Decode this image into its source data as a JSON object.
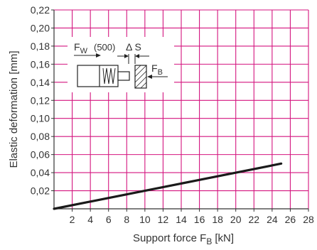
{
  "chart_data": {
    "type": "line",
    "xlabel": {
      "main": "Support force F",
      "sub": "B",
      "unit": "[kN]"
    },
    "ylabel": "Elastic deformation [mm]",
    "xlim": [
      0,
      28
    ],
    "ylim": [
      0,
      0.22
    ],
    "x_ticks": [
      "2",
      "4",
      "6",
      "8",
      "10",
      "12",
      "14",
      "16",
      "18",
      "20",
      "22",
      "24",
      "26",
      "28"
    ],
    "y_ticks": [
      "0,02",
      "0,04",
      "0,06",
      "0,08",
      "0,10",
      "0,12",
      "0,14",
      "0,16",
      "0,18",
      "0,20",
      "0,22"
    ],
    "grid": true,
    "series": [
      {
        "x": [
          0,
          25
        ],
        "y": [
          0.0,
          0.05
        ]
      }
    ],
    "inset": {
      "fw_main": "F",
      "fw_sub": "W",
      "fw_value": "(500)",
      "ds_label": "Δ S",
      "fb_main": "F",
      "fb_sub": "B"
    },
    "colors": {
      "grid": "#d4157f",
      "line": "#1a1a1a",
      "text": "#333333"
    }
  }
}
